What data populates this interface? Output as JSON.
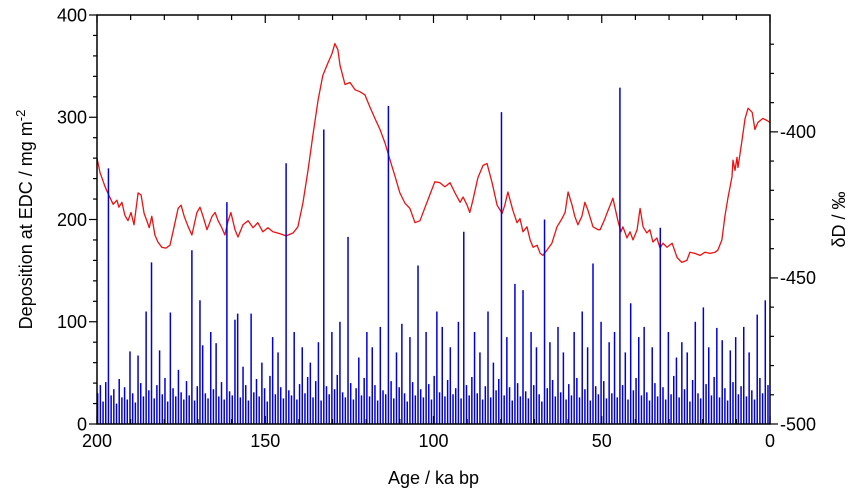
{
  "figure": {
    "background": "#ffffff"
  },
  "chart_data": {
    "type": "combo",
    "title": "",
    "xlabel": "Age / ka bp",
    "x_axis": {
      "min": 200,
      "max": 0,
      "reversed": true,
      "major_ticks": [
        200,
        150,
        100,
        50,
        0
      ],
      "minor_step": 10
    },
    "left_axis": {
      "label_main": "Deposition at EDC / mg m",
      "label_sup": "-2",
      "min": 0,
      "max": 400,
      "major_ticks": [
        0,
        100,
        200,
        300,
        400
      ],
      "minor_step": 20
    },
    "right_axis": {
      "label": "δD / ‰",
      "min": -500,
      "max": -360,
      "major_ticks": [
        -400,
        -450,
        -500
      ],
      "minor_step": 10
    },
    "colors": {
      "bars": "#0000dd",
      "line": "#ee1111",
      "axis": "#000000"
    },
    "series": [
      {
        "name": "deposition-at-edc",
        "type": "bar",
        "axis": "left",
        "color": "#0000dd",
        "age_start": 199.8,
        "age_step": -0.8,
        "values": [
          30,
          38,
          22,
          41,
          250,
          28,
          34,
          20,
          44,
          26,
          36,
          24,
          71,
          30,
          21,
          67,
          40,
          27,
          110,
          33,
          158,
          25,
          38,
          72,
          29,
          45,
          22,
          109,
          35,
          27,
          53,
          31,
          24,
          42,
          28,
          170,
          23,
          37,
          121,
          77,
          30,
          25,
          90,
          34,
          79,
          27,
          41,
          24,
          217,
          32,
          28,
          102,
          108,
          26,
          56,
          38,
          23,
          108,
          31,
          44,
          27,
          60,
          35,
          22,
          47,
          85,
          29,
          70,
          36,
          25,
          255,
          33,
          28,
          90,
          24,
          39,
          75,
          30,
          46,
          60,
          26,
          42,
          80,
          23,
          288,
          37,
          29,
          90,
          34,
          48,
          100,
          31,
          26,
          183,
          40,
          24,
          35,
          65,
          28,
          45,
          90,
          27,
          75,
          38,
          23,
          95,
          33,
          29,
          311,
          42,
          25,
          70,
          36,
          98,
          30,
          22,
          85,
          41,
          28,
          155,
          34,
          26,
          90,
          39,
          24,
          47,
          110,
          31,
          95,
          27,
          43,
          75,
          29,
          35,
          100,
          25,
          188,
          38,
          28,
          46,
          90,
          30,
          70,
          24,
          37,
          110,
          26,
          60,
          33,
          44,
          305,
          28,
          85,
          36,
          23,
          137,
          40,
          27,
          131,
          32,
          25,
          90,
          38,
          75,
          29,
          22,
          200,
          35,
          80,
          43,
          27,
          95,
          31,
          70,
          24,
          39,
          28,
          90,
          45,
          26,
          110,
          34,
          75,
          23,
          157,
          37,
          29,
          100,
          42,
          25,
          80,
          30,
          90,
          26,
          329,
          38,
          70,
          24,
          118,
          33,
          45,
          85,
          28,
          95,
          31,
          23,
          75,
          40,
          27,
          192,
          36,
          24,
          90,
          29,
          47,
          65,
          26,
          80,
          34,
          70,
          22,
          43,
          100,
          30,
          25,
          114,
          39,
          75,
          28,
          46,
          94,
          26,
          82,
          35,
          23,
          72,
          41,
          85,
          29,
          37,
          95,
          27,
          70,
          33,
          24,
          107,
          45,
          30,
          121,
          38
        ]
      },
      {
        "name": "dD",
        "type": "line",
        "axis": "right",
        "color": "#ee1111",
        "points": [
          [
            200,
            -409
          ],
          [
            199.1,
            -413.9
          ],
          [
            197.6,
            -418.8
          ],
          [
            196.4,
            -421.9
          ],
          [
            195.2,
            -424.8
          ],
          [
            194.1,
            -423.4
          ],
          [
            193.5,
            -425.8
          ],
          [
            192.6,
            -424.1
          ],
          [
            191.7,
            -428.6
          ],
          [
            190.8,
            -430.4
          ],
          [
            189.9,
            -427.6
          ],
          [
            189,
            -431.8
          ],
          [
            187.8,
            -420.9
          ],
          [
            186.9,
            -421.6
          ],
          [
            186,
            -427.9
          ],
          [
            185.1,
            -430.7
          ],
          [
            184.5,
            -432.8
          ],
          [
            183.7,
            -428.9
          ],
          [
            182.8,
            -435.3
          ],
          [
            181.9,
            -437.7
          ],
          [
            180.7,
            -439.5
          ],
          [
            179.5,
            -439.8
          ],
          [
            178.3,
            -438.8
          ],
          [
            177.1,
            -432.5
          ],
          [
            175.9,
            -426.2
          ],
          [
            175,
            -425.1
          ],
          [
            174.1,
            -428.9
          ],
          [
            172.9,
            -432.5
          ],
          [
            171.8,
            -435.3
          ],
          [
            170.3,
            -427.6
          ],
          [
            169.4,
            -425.8
          ],
          [
            168.5,
            -428.9
          ],
          [
            167.3,
            -433.5
          ],
          [
            165.8,
            -428.9
          ],
          [
            164.9,
            -427.6
          ],
          [
            164,
            -430.4
          ],
          [
            162.9,
            -432.8
          ],
          [
            162,
            -435.3
          ],
          [
            161.1,
            -430.7
          ],
          [
            160.2,
            -427.6
          ],
          [
            159,
            -433.5
          ],
          [
            158.1,
            -436
          ],
          [
            156.6,
            -431.8
          ],
          [
            155.1,
            -430.4
          ],
          [
            153.6,
            -432.8
          ],
          [
            152.2,
            -431.1
          ],
          [
            150.7,
            -434.2
          ],
          [
            149.2,
            -432.8
          ],
          [
            147.7,
            -434.2
          ],
          [
            145.6,
            -434.9
          ],
          [
            143.8,
            -435.6
          ],
          [
            141.7,
            -434.6
          ],
          [
            140.3,
            -432.5
          ],
          [
            138.8,
            -424.4
          ],
          [
            137.3,
            -413.2
          ],
          [
            135.8,
            -400.9
          ],
          [
            134.3,
            -389.1
          ],
          [
            132.9,
            -380.7
          ],
          [
            131.4,
            -376.5
          ],
          [
            130.2,
            -373.3
          ],
          [
            129.3,
            -369.8
          ],
          [
            128.4,
            -371.9
          ],
          [
            127.8,
            -377.2
          ],
          [
            126.3,
            -383.8
          ],
          [
            124.8,
            -383.1
          ],
          [
            123.3,
            -385.6
          ],
          [
            121.8,
            -386.3
          ],
          [
            120.4,
            -387.3
          ],
          [
            118.9,
            -391.5
          ],
          [
            117.4,
            -395.4
          ],
          [
            115.9,
            -399.2
          ],
          [
            114.4,
            -403.8
          ],
          [
            112.9,
            -409.7
          ],
          [
            111.4,
            -415.3
          ],
          [
            110,
            -420.9
          ],
          [
            108.5,
            -424.4
          ],
          [
            107,
            -426.2
          ],
          [
            105.5,
            -431.1
          ],
          [
            104,
            -430.4
          ],
          [
            102.5,
            -425.8
          ],
          [
            101,
            -421.3
          ],
          [
            99.6,
            -417.1
          ],
          [
            98.1,
            -417.4
          ],
          [
            96.6,
            -418.8
          ],
          [
            95.1,
            -417.4
          ],
          [
            93.6,
            -420.9
          ],
          [
            92.1,
            -424.1
          ],
          [
            91.2,
            -422.3
          ],
          [
            90,
            -425.1
          ],
          [
            89.2,
            -427.6
          ],
          [
            88.3,
            -423.4
          ],
          [
            86.8,
            -415.7
          ],
          [
            85.3,
            -411.5
          ],
          [
            84.1,
            -410.8
          ],
          [
            82.6,
            -417.4
          ],
          [
            81.1,
            -425.1
          ],
          [
            79.6,
            -427.9
          ],
          [
            78.8,
            -425.1
          ],
          [
            77.9,
            -420.6
          ],
          [
            76.4,
            -426.9
          ],
          [
            75.2,
            -431.1
          ],
          [
            74.3,
            -429.7
          ],
          [
            73.4,
            -434.2
          ],
          [
            72.2,
            -432.5
          ],
          [
            71.3,
            -437
          ],
          [
            70.4,
            -439.5
          ],
          [
            69.2,
            -438.8
          ],
          [
            68.3,
            -441.6
          ],
          [
            67.5,
            -442.3
          ],
          [
            66.3,
            -440.5
          ],
          [
            64.8,
            -438.1
          ],
          [
            63.3,
            -432.5
          ],
          [
            61.8,
            -429.7
          ],
          [
            60.9,
            -427.6
          ],
          [
            60,
            -420.6
          ],
          [
            58.8,
            -425.1
          ],
          [
            58,
            -428.9
          ],
          [
            57.1,
            -431.8
          ],
          [
            55.9,
            -428.9
          ],
          [
            55,
            -424.1
          ],
          [
            54.1,
            -426.9
          ],
          [
            52.6,
            -432.5
          ],
          [
            51.1,
            -433.5
          ],
          [
            50.5,
            -433.5
          ],
          [
            49.3,
            -430.4
          ],
          [
            48.1,
            -426.9
          ],
          [
            46.7,
            -422.7
          ],
          [
            45.2,
            -430.4
          ],
          [
            44.3,
            -434.2
          ],
          [
            43.7,
            -432.5
          ],
          [
            42.5,
            -436.3
          ],
          [
            41.6,
            -434.2
          ],
          [
            40.7,
            -437
          ],
          [
            39.5,
            -433.5
          ],
          [
            38.6,
            -426.2
          ],
          [
            37.7,
            -432.5
          ],
          [
            36.6,
            -434.6
          ],
          [
            35.7,
            -433.5
          ],
          [
            34.8,
            -437.7
          ],
          [
            33.6,
            -436.3
          ],
          [
            32.7,
            -439.8
          ],
          [
            31.8,
            -438.1
          ],
          [
            30.6,
            -439.5
          ],
          [
            29.1,
            -438.1
          ],
          [
            27.6,
            -443
          ],
          [
            26.2,
            -444.7
          ],
          [
            24.7,
            -444
          ],
          [
            23.8,
            -441.2
          ],
          [
            22.3,
            -441.6
          ],
          [
            20.8,
            -442.3
          ],
          [
            19.3,
            -441.2
          ],
          [
            17.8,
            -441.6
          ],
          [
            16.3,
            -441.2
          ],
          [
            15.5,
            -440.5
          ],
          [
            14.3,
            -437
          ],
          [
            13.4,
            -428.9
          ],
          [
            12.5,
            -422.7
          ],
          [
            11.3,
            -415.3
          ],
          [
            11,
            -409.7
          ],
          [
            10.4,
            -413.2
          ],
          [
            9.8,
            -408.7
          ],
          [
            9.5,
            -412.2
          ],
          [
            8.3,
            -402.7
          ],
          [
            7.4,
            -395.4
          ],
          [
            6.5,
            -391.9
          ],
          [
            5.3,
            -393.3
          ],
          [
            4.5,
            -399.2
          ],
          [
            3.6,
            -396.8
          ],
          [
            2.1,
            -395.4
          ],
          [
            0.9,
            -396.1
          ],
          [
            0,
            -396.8
          ]
        ]
      }
    ]
  }
}
